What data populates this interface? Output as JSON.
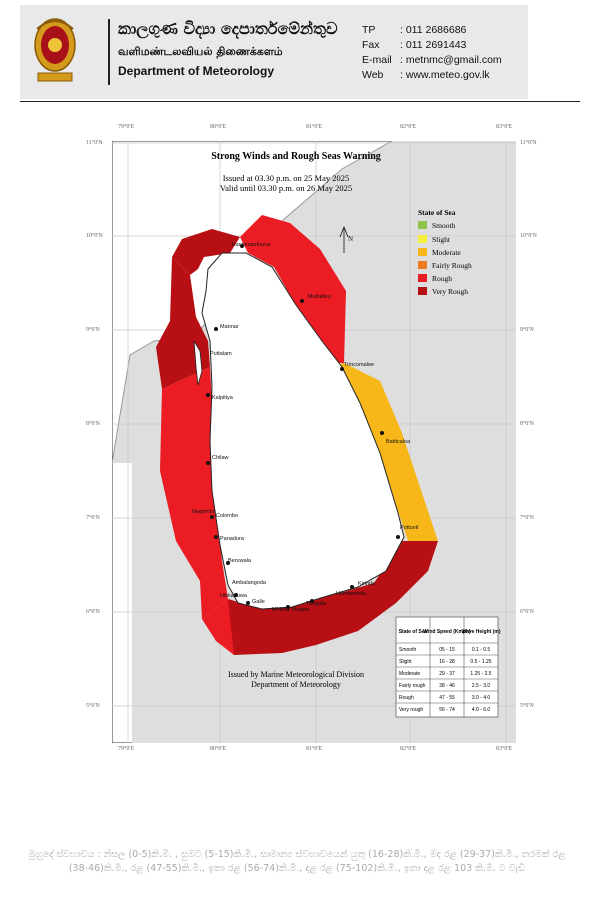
{
  "header": {
    "org_sinhala": "කාලගුණ විද්‍යා දෙපාර්තමේන්තුව",
    "org_tamil": "வளிமண்டலவியல் திணைக்களம்",
    "org_english": "Department of Meteorology",
    "contacts": [
      {
        "key": "TP",
        "value": ": 011 2686686"
      },
      {
        "key": "Fax",
        "value": ": 011 2691443"
      },
      {
        "key": "E-mail",
        "value": ": metnmc@gmail.com"
      },
      {
        "key": "Web",
        "value": ": www.meteo.gov.lk"
      }
    ]
  },
  "map": {
    "title": "Strong Winds and Rough Seas Warning",
    "issued": "Issued at 03.30 p.m. on 25 May 2025",
    "valid": "Valid until 03.30 p.m. on 26 May 2025",
    "issued_by_1": "Issued by Marine Meteorological Division",
    "issued_by_2": "Department of Meteorology",
    "lon_labels": [
      "79°0'E",
      "80°0'E",
      "81°0'E",
      "82°0'E",
      "83°0'E"
    ],
    "lat_labels": [
      "10°0'N",
      "9°0'N",
      "8°0'N",
      "7°0'N",
      "6°0'N",
      "5°0'N"
    ],
    "top_lat_label": "11°0'N",
    "legend": {
      "title": "State of Sea",
      "items": [
        {
          "label": "Smooth",
          "color": "#8fc64a"
        },
        {
          "label": "Slight",
          "color": "#f5ee3b"
        },
        {
          "label": "Moderate",
          "color": "#f7b718"
        },
        {
          "label": "Fairly Rough",
          "color": "#ee7a22"
        },
        {
          "label": "Rough",
          "color": "#ec1c24"
        },
        {
          "label": "Very Rough",
          "color": "#b80f14"
        }
      ]
    },
    "places": [
      "Kankesanthurai",
      "Mullaitivu",
      "Mannar",
      "Trincomalee",
      "Puttalam",
      "Kalpitiya",
      "Batticaloa",
      "Chilaw",
      "Negombo",
      "Colombo",
      "Panadura",
      "Pottuvil",
      "Beruwala",
      "Ambalangoda",
      "Hikkaduwa",
      "Galle",
      "Matara",
      "Mirissa",
      "Tangalle",
      "Hambantota",
      "Kirinda"
    ],
    "table": {
      "headers": [
        "State of Sea",
        "Wind Speed (Kmph)",
        "Wave Height (m)"
      ],
      "rows": [
        [
          "Smooth",
          "05 - 15",
          "0.1 - 0.5"
        ],
        [
          "Slight",
          "16 - 28",
          "0.5 - 1.25"
        ],
        [
          "Moderate",
          "29 - 37",
          "1.25 - 2.5"
        ],
        [
          "Fairly rough",
          "38 - 46",
          "2.5 - 3.0"
        ],
        [
          "Rough",
          "47 - 55",
          "3.0 - 4.0"
        ],
        [
          "Very rough",
          "56 - 74",
          "4.0 - 6.0"
        ]
      ]
    }
  },
  "footer": {
    "text": "මුහුදේ ස්වභාවය : නිසල (0-5)කි.මී. , සුමට (5-15)කි.මී., සාමාන්‍ය ස්වභාවයෙන් යුතු (16-28)කි.මී., මද රළ (29-37)කි.මී., තරමක් රළ (38-46)කි.මී., රළ (47-55)කි.මී., ඉතා රළ (56-74)කි.මී., දළ රළ (75-102)කි.මී., ඉතා දළ රළ 103 කි.මී. ට වැඩි"
  }
}
